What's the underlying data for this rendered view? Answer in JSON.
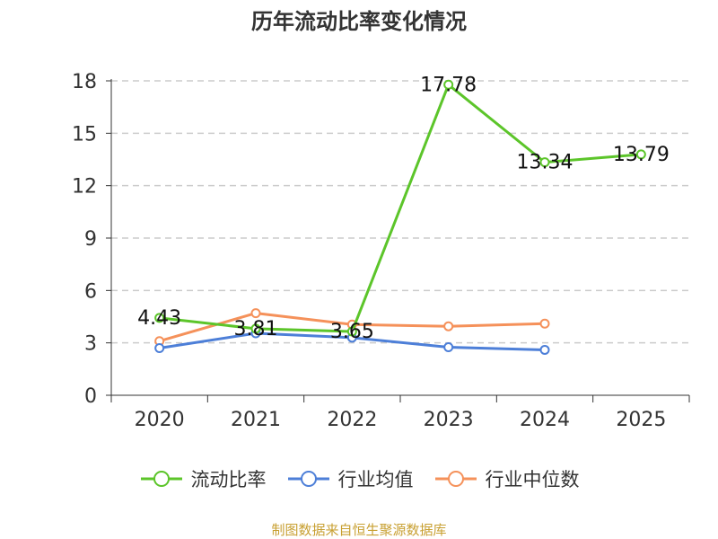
{
  "chart_data": {
    "type": "line",
    "title": "历年流动比率变化情况",
    "categories": [
      "2020",
      "2021",
      "2022",
      "2023",
      "2024",
      "2025"
    ],
    "yticks": [
      0,
      3,
      6,
      9,
      12,
      15,
      18
    ],
    "ylim": [
      0,
      18
    ],
    "series": [
      {
        "name": "流动比率",
        "color": "#5cc52a",
        "values": [
          4.43,
          3.81,
          3.65,
          17.78,
          13.34,
          13.79
        ],
        "show_labels": true
      },
      {
        "name": "行业均值",
        "color": "#4d7fd8",
        "values": [
          2.7,
          3.55,
          3.3,
          2.75,
          2.6,
          null
        ],
        "show_labels": false
      },
      {
        "name": "行业中位数",
        "color": "#f5915a",
        "values": [
          3.1,
          4.7,
          4.05,
          3.95,
          4.1,
          null
        ],
        "show_labels": false
      }
    ],
    "grid": true,
    "legend_position": "bottom"
  },
  "source": "制图数据来自恒生聚源数据库"
}
